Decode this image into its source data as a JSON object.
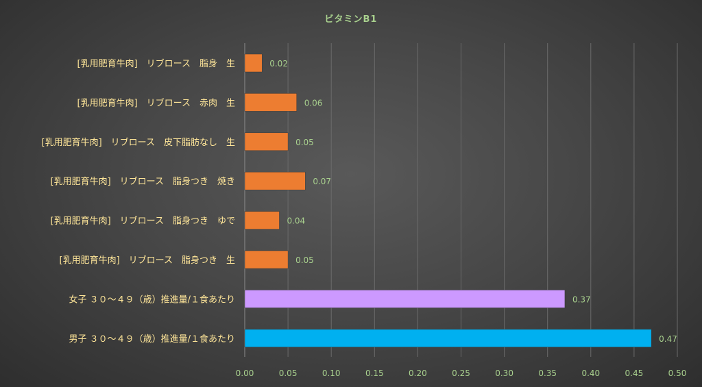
{
  "chart_data": {
    "type": "bar",
    "orientation": "horizontal",
    "title": "ビタミンB1",
    "xlabel": "",
    "ylabel": "",
    "xlim": [
      0,
      0.5
    ],
    "xticks": [
      "0.00",
      "0.05",
      "0.10",
      "0.15",
      "0.20",
      "0.25",
      "0.30",
      "0.35",
      "0.40",
      "0.45",
      "0.50"
    ],
    "grid": true,
    "categories": [
      "[乳用肥育牛肉]　リブロース　脂身　生",
      "[乳用肥育牛肉]　リブロース　赤肉　生",
      "[乳用肥育牛肉]　リブロース　皮下脂肪なし　生",
      "[乳用肥育牛肉]　リブロース　脂身つき　焼き",
      "[乳用肥育牛肉]　リブロース　脂身つき　ゆで",
      "[乳用肥育牛肉]　リブロース　脂身つき　生",
      "女子 ３０～４９（歳）推進量/１食あたり",
      "男子 ３０～４９（歳）推進量/１食あたり"
    ],
    "values": [
      0.02,
      0.06,
      0.05,
      0.07,
      0.04,
      0.05,
      0.37,
      0.47
    ],
    "value_labels": [
      "0.02",
      "0.06",
      "0.05",
      "0.07",
      "0.04",
      "0.05",
      "0.37",
      "0.47"
    ],
    "bar_colors": [
      "#ed7d31",
      "#ed7d31",
      "#ed7d31",
      "#ed7d31",
      "#ed7d31",
      "#ed7d31",
      "#cc99ff",
      "#00b0f0"
    ]
  }
}
